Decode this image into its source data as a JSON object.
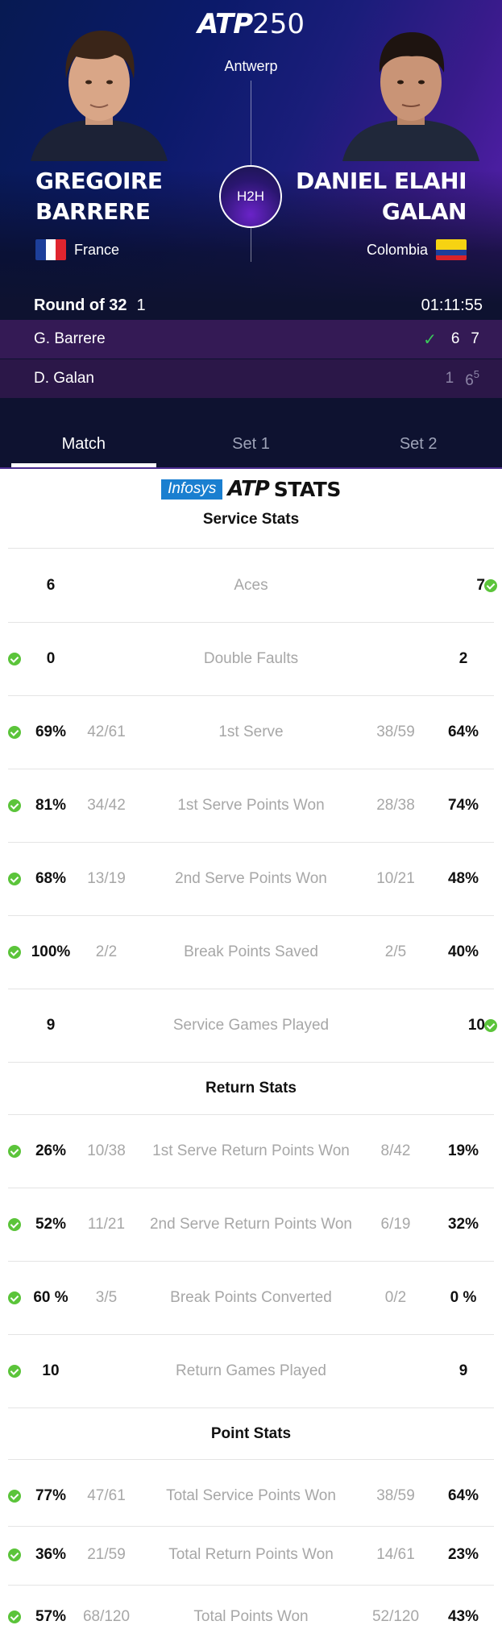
{
  "header": {
    "brand": "ATP",
    "tier": "250",
    "venue": "Antwerp",
    "h2h_label": "H2H",
    "player1": {
      "first": "GREGOIRE",
      "last": "BARRERE",
      "country": "France"
    },
    "player2": {
      "first": "DANIEL ELAHI",
      "last": "GALAN",
      "country": "Colombia"
    },
    "round": "Round of 32",
    "court": "1",
    "duration": "01:11:55",
    "score": {
      "row1": {
        "name": "G. Barrere",
        "s1": "6",
        "s2": "7"
      },
      "row2": {
        "name": "D. Galan",
        "s1": "1",
        "s2": "6",
        "s2_tiebreak": "5"
      }
    }
  },
  "tabs": [
    "Match",
    "Set 1",
    "Set 2"
  ],
  "stats_brand": {
    "sponsor": "Infosys",
    "atp": "ATP",
    "word": "STATS"
  },
  "sections": {
    "service": {
      "title": "Service Stats",
      "rows": [
        {
          "label": "Aces",
          "lval": "6",
          "rval": "7",
          "winner": "right"
        },
        {
          "label": "Double Faults",
          "lval": "0",
          "rval": "2",
          "winner": "left"
        },
        {
          "label": "1st Serve",
          "lval": "69%",
          "lfrac": "42/61",
          "rfrac": "38/59",
          "rval": "64%",
          "winner": "left"
        },
        {
          "label": "1st Serve Points Won",
          "lval": "81%",
          "lfrac": "34/42",
          "rfrac": "28/38",
          "rval": "74%",
          "winner": "left"
        },
        {
          "label": "2nd Serve Points Won",
          "lval": "68%",
          "lfrac": "13/19",
          "rfrac": "10/21",
          "rval": "48%",
          "winner": "left"
        },
        {
          "label": "Break Points Saved",
          "lval": "100%",
          "lfrac": "2/2",
          "rfrac": "2/5",
          "rval": "40%",
          "winner": "left"
        },
        {
          "label": "Service Games Played",
          "lval": "9",
          "rval": "10",
          "winner": "right"
        }
      ]
    },
    "return": {
      "title": "Return Stats",
      "rows": [
        {
          "label": "1st Serve Return Points Won",
          "lval": "26%",
          "lfrac": "10/38",
          "rfrac": "8/42",
          "rval": "19%",
          "winner": "left"
        },
        {
          "label": "2nd Serve Return Points Won",
          "lval": "52%",
          "lfrac": "11/21",
          "rfrac": "6/19",
          "rval": "32%",
          "winner": "left"
        },
        {
          "label": "Break Points Converted",
          "lval": "60 %",
          "lfrac": "3/5",
          "rfrac": "0/2",
          "rval": "0 %",
          "winner": "left"
        },
        {
          "label": "Return Games Played",
          "lval": "10",
          "rval": "9",
          "winner": "left"
        }
      ]
    },
    "points": {
      "title": "Point Stats",
      "rows": [
        {
          "label": "Total Service Points Won",
          "lval": "77%",
          "lfrac": "47/61",
          "rfrac": "38/59",
          "rval": "64%",
          "winner": "left"
        },
        {
          "label": "Total Return Points Won",
          "lval": "36%",
          "lfrac": "21/59",
          "rfrac": "14/61",
          "rval": "23%",
          "winner": "left"
        },
        {
          "label": "Total Points Won",
          "lval": "57%",
          "lfrac": "68/120",
          "rfrac": "52/120",
          "rval": "43%",
          "winner": "left"
        }
      ]
    }
  },
  "colors": {
    "win_check": "#5bc43a",
    "accent_purple": "#6a23c8",
    "header_navy": "#0e1230"
  }
}
